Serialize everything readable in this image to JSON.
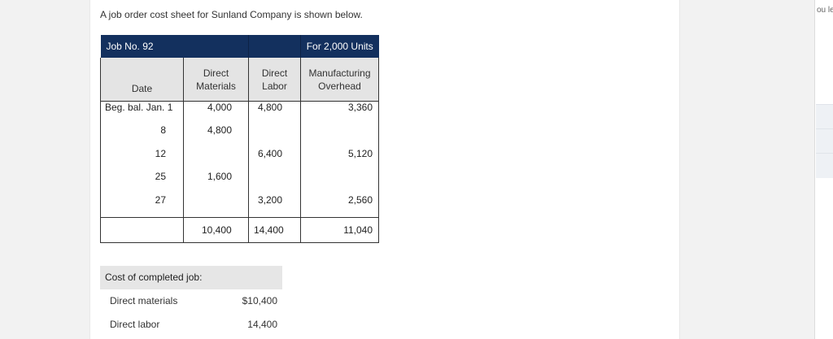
{
  "intro_text": "A job order cost sheet for Sunland Company is shown below.",
  "job_sheet": {
    "job_no": "Job No. 92",
    "units": "For 2,000 Units",
    "columns": {
      "date": "Date",
      "direct_materials": "Direct Materials",
      "direct_labor": "Direct Labor",
      "overhead": "Manufacturing Overhead"
    },
    "rows": [
      {
        "date": "Beg. bal. Jan. 1",
        "dm": "4,000",
        "dl": "4,800",
        "moh": "3,360"
      },
      {
        "date": "8",
        "dm": "4,800",
        "dl": "",
        "moh": ""
      },
      {
        "date": "12",
        "dm": "",
        "dl": "6,400",
        "moh": "5,120"
      },
      {
        "date": "25",
        "dm": "1,600",
        "dl": "",
        "moh": ""
      },
      {
        "date": "27",
        "dm": "",
        "dl": "3,200",
        "moh": "2,560"
      }
    ],
    "totals": {
      "dm": "10,400",
      "dl": "14,400",
      "moh": "11,040"
    }
  },
  "cost_of_completed_job": {
    "heading": "Cost of completed job:",
    "lines": [
      {
        "label": "Direct materials",
        "amount": "$10,400"
      },
      {
        "label": "Direct labor",
        "amount": "14,400"
      }
    ]
  },
  "side_panel": {
    "snippet": "ou lea"
  },
  "colors": {
    "header_navy": "#13305e",
    "subheader_gray": "#e4e4e4"
  }
}
